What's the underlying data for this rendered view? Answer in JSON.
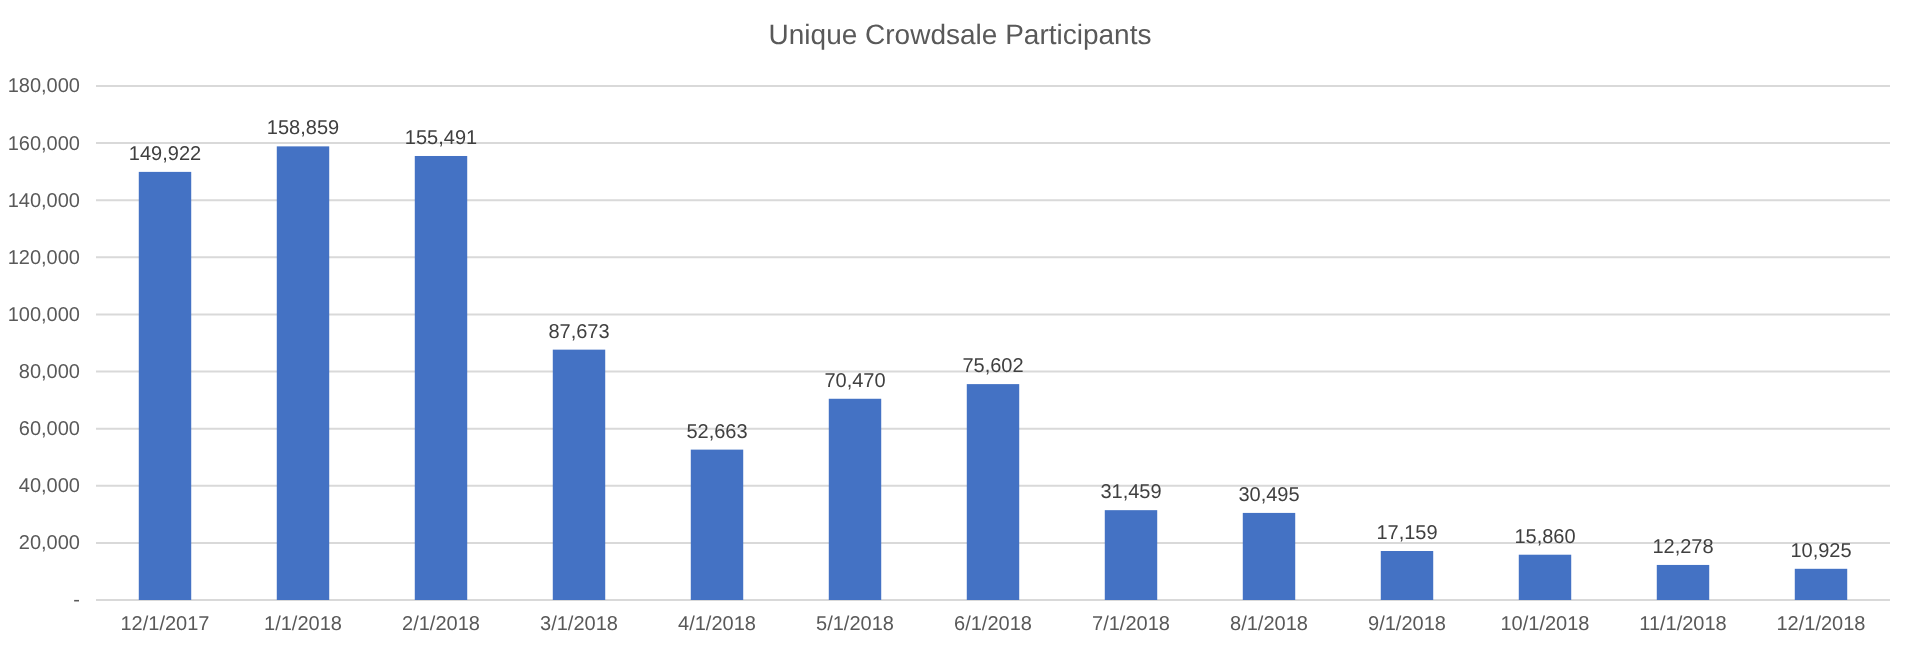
{
  "chart_data": {
    "type": "bar",
    "title": "Unique Crowdsale Participants",
    "categories": [
      "12/1/2017",
      "1/1/2018",
      "2/1/2018",
      "3/1/2018",
      "4/1/2018",
      "5/1/2018",
      "6/1/2018",
      "7/1/2018",
      "8/1/2018",
      "9/1/2018",
      "10/1/2018",
      "11/1/2018",
      "12/1/2018"
    ],
    "values": [
      149922,
      158859,
      155491,
      87673,
      52663,
      70470,
      75602,
      31459,
      30495,
      17159,
      15860,
      12278,
      10925
    ],
    "color": "#4472c4",
    "ylim": [
      0,
      180000
    ],
    "yticks": [
      {
        "value": 0,
        "label": "-"
      },
      {
        "value": 20000,
        "label": "20,000"
      },
      {
        "value": 40000,
        "label": "40,000"
      },
      {
        "value": 60000,
        "label": "60,000"
      },
      {
        "value": 80000,
        "label": "80,000"
      },
      {
        "value": 100000,
        "label": "100,000"
      },
      {
        "value": 120000,
        "label": "120,000"
      },
      {
        "value": 140000,
        "label": "140,000"
      },
      {
        "value": 160000,
        "label": "160,000"
      },
      {
        "value": 180000,
        "label": "180,000"
      }
    ],
    "value_labels": [
      "149,922",
      "158,859",
      "155,491",
      "87,673",
      "52,663",
      "70,470",
      "75,602",
      "31,459",
      "30,495",
      "17,159",
      "15,860",
      "12,278",
      "10,925"
    ],
    "grid": "y"
  }
}
